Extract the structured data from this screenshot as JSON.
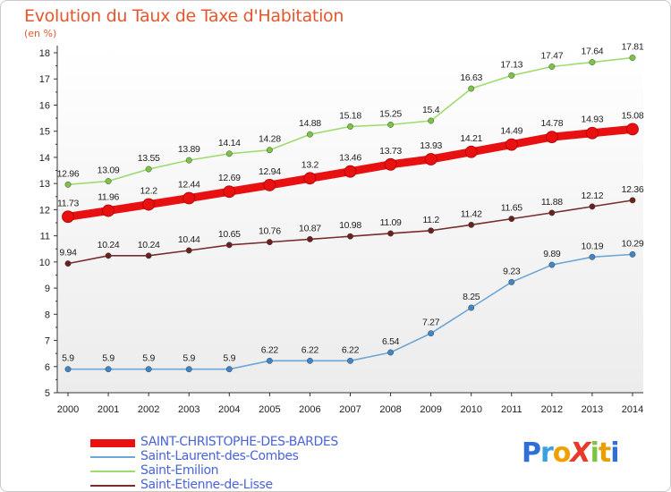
{
  "title": "Evolution du Taux de Taxe d'Habitation",
  "subtitle": "(en %)",
  "logo": {
    "text": "ProXiti",
    "letters": [
      {
        "ch": "P",
        "color": "#2f6fd6"
      },
      {
        "ch": "r",
        "color": "#3aa0e0"
      },
      {
        "ch": "o",
        "color": "#f2a000"
      },
      {
        "ch": "X",
        "color": "#e83a2b"
      },
      {
        "ch": "i",
        "color": "#7cc443"
      },
      {
        "ch": "t",
        "color": "#e8a000"
      },
      {
        "ch": "i",
        "color": "#2f6fd6"
      }
    ]
  },
  "chart_data": {
    "type": "line",
    "title": "Evolution du Taux de Taxe d'Habitation",
    "ylabel": "(en %)",
    "xlabel": "",
    "x": [
      "2000",
      "2001",
      "2002",
      "2003",
      "2004",
      "2005",
      "2006",
      "2007",
      "2008",
      "2009",
      "2010",
      "2011",
      "2012",
      "2013",
      "2014"
    ],
    "ylim": [
      5,
      18
    ],
    "yticks": [
      5,
      6,
      7,
      8,
      9,
      10,
      11,
      12,
      13,
      14,
      15,
      16,
      17,
      18
    ],
    "grid": false,
    "legend_position": "bottom-left",
    "series": [
      {
        "name": "SAINT-CHRISTOPHE-DES-BARDES",
        "color": "#e81010",
        "marker_color": "#e81010",
        "values": [
          11.73,
          11.96,
          12.2,
          12.44,
          12.69,
          12.94,
          13.2,
          13.46,
          13.73,
          13.93,
          14.21,
          14.49,
          14.78,
          14.93,
          15.08
        ],
        "labels": [
          "11.73",
          "11.96",
          "12.2",
          "12.44",
          "12.69",
          "12.94",
          "13.2",
          "13.46",
          "13.73",
          "13.93",
          "14.21",
          "14.49",
          "14.78",
          "14.93",
          "15.08"
        ]
      },
      {
        "name": "Saint-Laurent-des-Combes",
        "color": "#6ea6d6",
        "marker_color": "#3f86c8",
        "values": [
          5.9,
          5.9,
          5.9,
          5.9,
          5.9,
          6.22,
          6.22,
          6.22,
          6.54,
          7.27,
          8.25,
          9.23,
          9.89,
          10.19,
          10.29
        ],
        "labels": [
          "5.9",
          "5.9",
          "5.9",
          "5.9",
          "5.9",
          "6.22",
          "6.22",
          "6.22",
          "6.54",
          "7.27",
          "8.25",
          "9.23",
          "9.89",
          "10.19",
          "10.29"
        ]
      },
      {
        "name": "Saint-Emilion",
        "color": "#9fdc6f",
        "marker_color": "#7cc443",
        "values": [
          12.96,
          13.09,
          13.55,
          13.89,
          14.14,
          14.28,
          14.88,
          15.18,
          15.25,
          15.4,
          16.63,
          17.13,
          17.47,
          17.64,
          17.81
        ],
        "labels": [
          "12.96",
          "13.09",
          "13.55",
          "13.89",
          "14.14",
          "14.28",
          "14.88",
          "15.18",
          "15.25",
          "15.4",
          "16.63",
          "17.13",
          "17.47",
          "17.64",
          "17.81"
        ]
      },
      {
        "name": "Saint-Etienne-de-Lisse",
        "color": "#7a2c2c",
        "marker_color": "#6b2020",
        "values": [
          9.94,
          10.24,
          10.24,
          10.44,
          10.65,
          10.76,
          10.87,
          10.98,
          11.09,
          11.2,
          11.42,
          11.65,
          11.88,
          12.12,
          12.36
        ],
        "labels": [
          "9.94",
          "10.24",
          "10.24",
          "10.44",
          "10.65",
          "10.76",
          "10.87",
          "10.98",
          "11.09",
          "11.2",
          "11.42",
          "11.65",
          "11.88",
          "12.12",
          "12.36"
        ]
      }
    ]
  }
}
